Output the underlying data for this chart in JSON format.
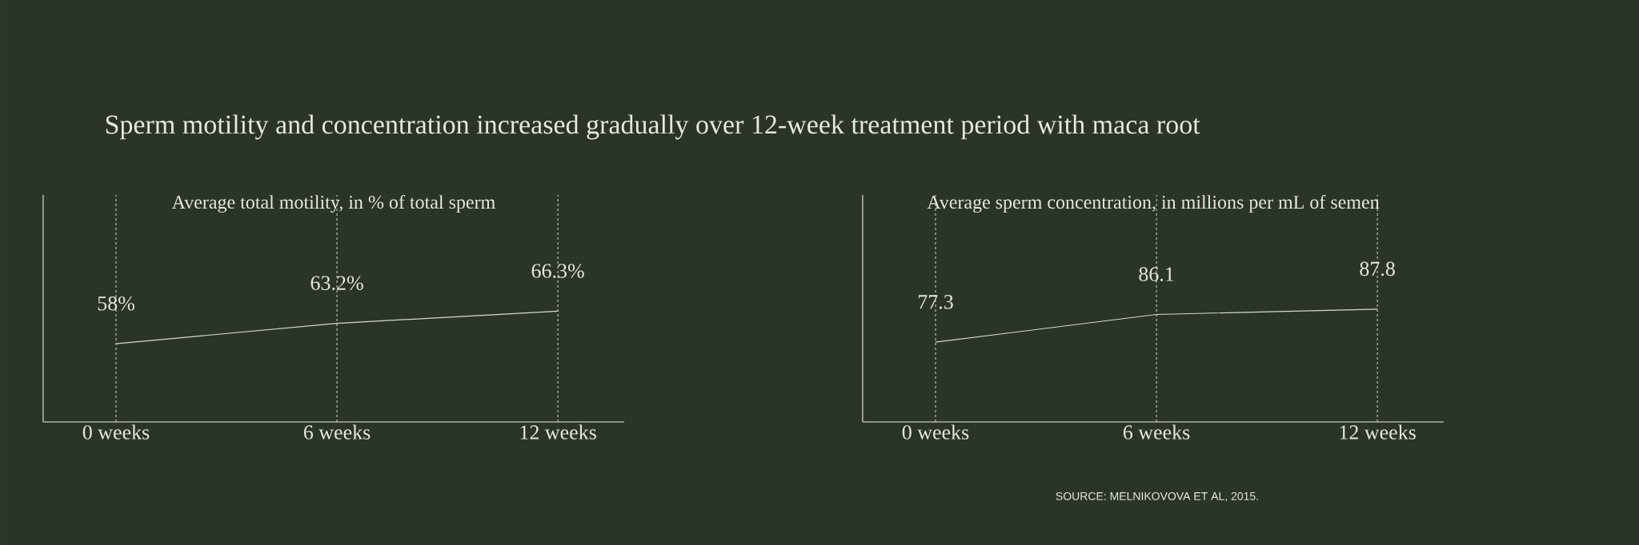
{
  "chart_data": [
    {
      "type": "line",
      "title": "Sperm motility and concentration increased gradually over 12-week treatment period with maca root",
      "subtitle": "Average total motility, in % of total sperm",
      "categories": [
        "0 weeks",
        "6 weeks",
        "12 weeks"
      ],
      "values": [
        58,
        63.2,
        66.3
      ],
      "value_labels": [
        "58%",
        "63.2%",
        "66.3%"
      ],
      "color": "#d8d8cc",
      "ylim": [
        38,
        96
      ],
      "tick_labels": "x",
      "grid": "x",
      "marker": "none",
      "line_style": "solid"
    },
    {
      "type": "line",
      "title": "Average sperm concentration, in millions per mL of semen",
      "categories": [
        "0 weeks",
        "6 weeks",
        "12 weeks"
      ],
      "values": [
        77.3,
        86.1,
        87.8
      ],
      "data_labels": true,
      "color": "#d8d8cc",
      "ylim": [
        52,
        124
      ],
      "tick_labels": "x",
      "grid": "x",
      "marker": "none",
      "line_style": "solid",
      "annotations": [
        "SOURCE: MELNIKOVOVA ET AL, 2015."
      ]
    }
  ]
}
